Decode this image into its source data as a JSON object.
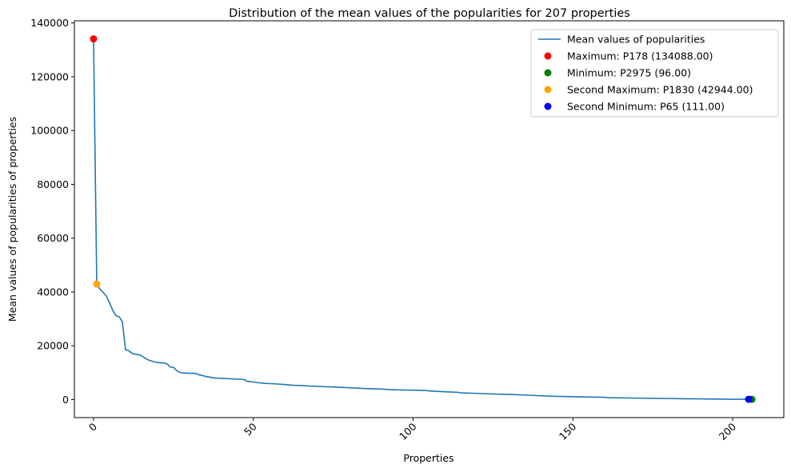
{
  "chart_data": {
    "type": "line",
    "title": "Distribution of the mean values of the popularities for 207 properties",
    "xlabel": "Properties",
    "ylabel": "Mean values of popularities of properties",
    "xlim": [
      -6,
      216
    ],
    "ylim": [
      -6700,
      140800
    ],
    "xticks": [
      0,
      50,
      100,
      150,
      200
    ],
    "yticks": [
      0,
      20000,
      40000,
      60000,
      80000,
      100000,
      120000,
      140000
    ],
    "line_color": "#1f77b4",
    "legend_position": "upper right",
    "series": [
      {
        "name": "Mean values of popularities",
        "x": [
          0,
          1,
          2,
          3,
          4,
          5,
          6,
          7,
          8,
          9,
          10,
          11,
          12,
          13,
          14,
          15,
          16,
          17,
          18,
          19,
          20,
          21,
          22,
          23,
          24,
          25,
          26,
          27,
          28,
          30,
          32,
          33,
          34,
          35,
          36,
          38,
          40,
          42,
          45,
          47,
          48,
          49,
          50,
          52,
          54,
          56,
          60,
          63,
          65,
          70,
          75,
          80,
          85,
          90,
          93,
          95,
          100,
          104,
          105,
          110,
          114,
          115,
          120,
          125,
          130,
          135,
          140,
          145,
          150,
          155,
          160,
          161,
          165,
          170,
          175,
          180,
          185,
          190,
          195,
          200,
          204,
          205,
          206
        ],
        "y": [
          134088,
          42944,
          41000,
          39800,
          38500,
          36000,
          33200,
          31200,
          30800,
          29000,
          18500,
          18200,
          17200,
          16900,
          16700,
          16300,
          15500,
          14800,
          14400,
          14000,
          13800,
          13700,
          13600,
          13300,
          12100,
          12000,
          10800,
          10100,
          9900,
          9800,
          9700,
          9200,
          9000,
          8600,
          8400,
          8000,
          7900,
          7800,
          7600,
          7500,
          6800,
          6700,
          6500,
          6200,
          6000,
          5900,
          5600,
          5300,
          5200,
          4900,
          4700,
          4400,
          4100,
          3900,
          3700,
          3600,
          3500,
          3400,
          3200,
          2900,
          2700,
          2500,
          2300,
          2100,
          1900,
          1700,
          1400,
          1200,
          1050,
          950,
          850,
          700,
          650,
          550,
          450,
          400,
          300,
          250,
          180,
          130,
          115,
          111,
          96
        ]
      }
    ],
    "highlights": [
      {
        "label": "Maximum: P178 (134088.00)",
        "x": 0,
        "y": 134088,
        "color": "#ff0000"
      },
      {
        "label": "Minimum: P2975 (96.00)",
        "x": 206,
        "y": 96,
        "color": "#008000"
      },
      {
        "label": "Second Maximum: P1830 (42944.00)",
        "x": 1,
        "y": 42944,
        "color": "#ffa500"
      },
      {
        "label": "Second Minimum: P65 (111.00)",
        "x": 205,
        "y": 111,
        "color": "#0000ff"
      }
    ]
  }
}
